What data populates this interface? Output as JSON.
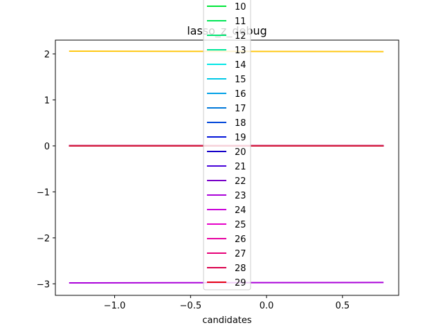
{
  "chart_data": {
    "type": "line",
    "title": "lasso_z_debug",
    "xlabel": "candidates",
    "ylabel": "",
    "xlim": [
      -1.39,
      0.87
    ],
    "ylim": [
      -3.25,
      2.3
    ],
    "grid": false,
    "legend_placement": "upper center",
    "x_ticks": [
      -1.0,
      -0.5,
      0.0,
      0.5
    ],
    "x_tick_labels": [
      "−1.0",
      "−0.5",
      "0.0",
      "0.5"
    ],
    "y_ticks": [
      -3,
      -2,
      -1,
      0,
      1,
      2
    ],
    "y_tick_labels": [
      "−3",
      "−2",
      "−1",
      "0",
      "1",
      "2"
    ],
    "x": [
      -1.3,
      0.77
    ],
    "series": [
      {
        "name": "10",
        "color": "#00e639",
        "values": [
          0.0,
          0.0
        ]
      },
      {
        "name": "11",
        "color": "#00e655",
        "values": [
          0.0,
          0.0
        ]
      },
      {
        "name": "12",
        "color": "#00e672",
        "values": [
          0.0,
          0.0
        ]
      },
      {
        "name": "13",
        "color": "#00e69a",
        "values": [
          0.0,
          0.0
        ]
      },
      {
        "name": "14",
        "color": "#00e6e6",
        "values": [
          0.0,
          0.0
        ]
      },
      {
        "name": "15",
        "color": "#00c8e6",
        "values": [
          0.0,
          0.0
        ]
      },
      {
        "name": "16",
        "color": "#00a0e6",
        "values": [
          0.0,
          0.0
        ]
      },
      {
        "name": "17",
        "color": "#0078d9",
        "values": [
          0.0,
          0.0
        ]
      },
      {
        "name": "18",
        "color": "#0046d9",
        "values": [
          0.0,
          0.0
        ]
      },
      {
        "name": "19",
        "color": "#0014d9",
        "values": [
          0.0,
          0.0
        ]
      },
      {
        "name": "20",
        "color": "#1400c8",
        "values": [
          0.0,
          0.0
        ]
      },
      {
        "name": "21",
        "color": "#4600d9",
        "values": [
          0.0,
          0.0
        ]
      },
      {
        "name": "22",
        "color": "#7800c8",
        "values": [
          0.0,
          0.0
        ]
      },
      {
        "name": "23",
        "color": "#aa00d9",
        "values": [
          -2.98,
          -2.97
        ]
      },
      {
        "name": "24",
        "color": "#c800d9",
        "values": [
          0.0,
          0.0
        ]
      },
      {
        "name": "25",
        "color": "#e600c8",
        "values": [
          0.0,
          0.0
        ]
      },
      {
        "name": "26",
        "color": "#e600a0",
        "values": [
          0.0,
          0.0
        ]
      },
      {
        "name": "27",
        "color": "#e60078",
        "values": [
          0.0,
          0.0
        ]
      },
      {
        "name": "28",
        "color": "#d9004b",
        "values": [
          0.0,
          0.0
        ]
      },
      {
        "name": "29",
        "color": "#e60014",
        "values": [
          0.0,
          0.0
        ]
      },
      {
        "color": "#ffc814",
        "values": [
          2.06,
          2.05
        ]
      },
      {
        "color": "#d21e3c",
        "values": [
          0.0,
          0.0
        ]
      }
    ]
  }
}
